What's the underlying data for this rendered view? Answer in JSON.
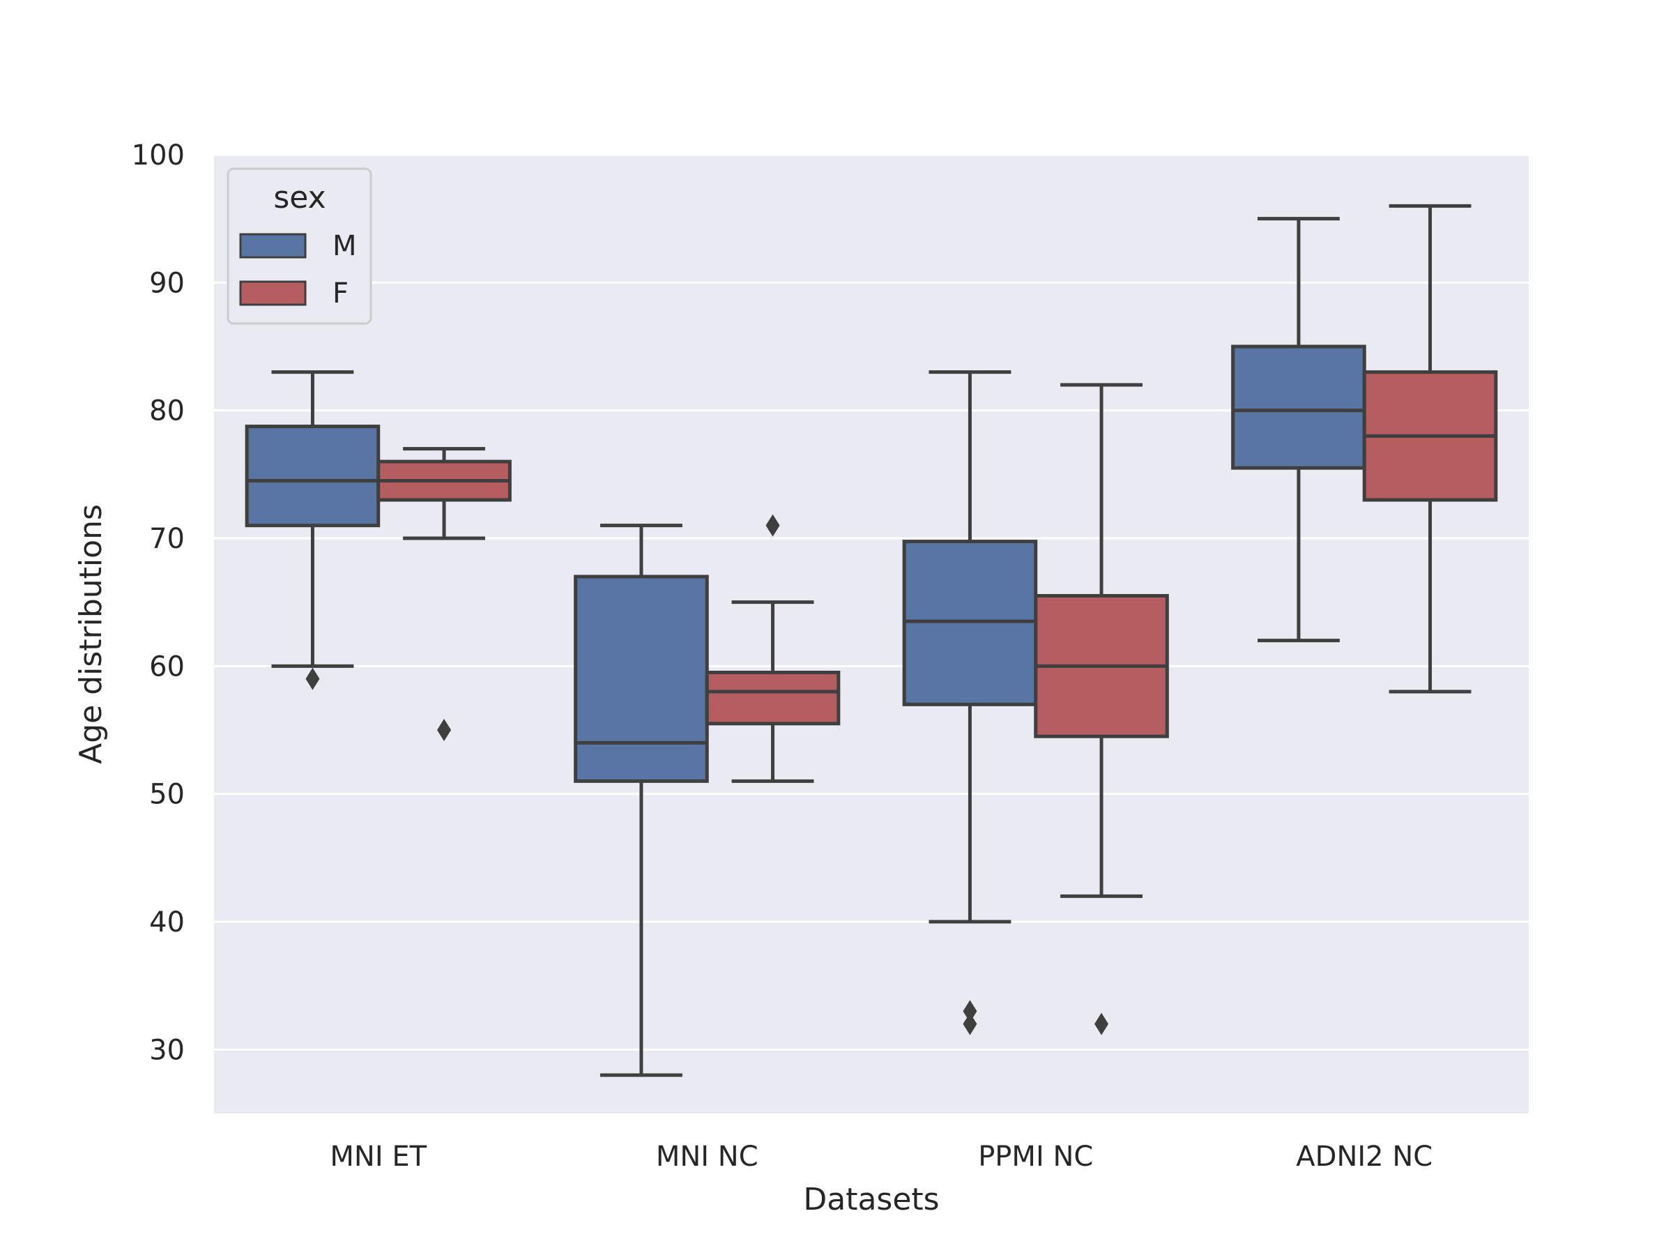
{
  "chart_data": {
    "type": "box",
    "title": "",
    "xlabel": "Datasets",
    "ylabel": "Age distributions",
    "ylim": [
      25,
      100
    ],
    "yticks": [
      30,
      40,
      50,
      60,
      70,
      80,
      90,
      100
    ],
    "categories": [
      "MNI ET",
      "MNI NC",
      "PPMI NC",
      "ADNI2 NC"
    ],
    "grid": true,
    "legend": {
      "title": "sex",
      "placement": "top-left"
    },
    "series": [
      {
        "name": "M",
        "color": "#5875a4",
        "boxes": [
          {
            "whisker_low": 60,
            "q1": 71,
            "median": 74.5,
            "q3": 78.75,
            "whisker_high": 83,
            "outliers": [
              59
            ]
          },
          {
            "whisker_low": 28,
            "q1": 51,
            "median": 54,
            "q3": 67,
            "whisker_high": 71,
            "outliers": []
          },
          {
            "whisker_low": 40,
            "q1": 57,
            "median": 63.5,
            "q3": 69.75,
            "whisker_high": 83,
            "outliers": [
              33,
              32
            ]
          },
          {
            "whisker_low": 62,
            "q1": 75.5,
            "median": 80,
            "q3": 85,
            "whisker_high": 95,
            "outliers": []
          }
        ]
      },
      {
        "name": "F",
        "color": "#b55d60",
        "boxes": [
          {
            "whisker_low": 70,
            "q1": 73,
            "median": 74.5,
            "q3": 76,
            "whisker_high": 77,
            "outliers": [
              55
            ]
          },
          {
            "whisker_low": 51,
            "q1": 55.5,
            "median": 58,
            "q3": 59.5,
            "whisker_high": 65,
            "outliers": [
              71
            ]
          },
          {
            "whisker_low": 42,
            "q1": 54.5,
            "median": 60,
            "q3": 65.5,
            "whisker_high": 82,
            "outliers": [
              32
            ]
          },
          {
            "whisker_low": 58,
            "q1": 73,
            "median": 78,
            "q3": 83,
            "whisker_high": 96,
            "outliers": []
          }
        ]
      }
    ]
  }
}
